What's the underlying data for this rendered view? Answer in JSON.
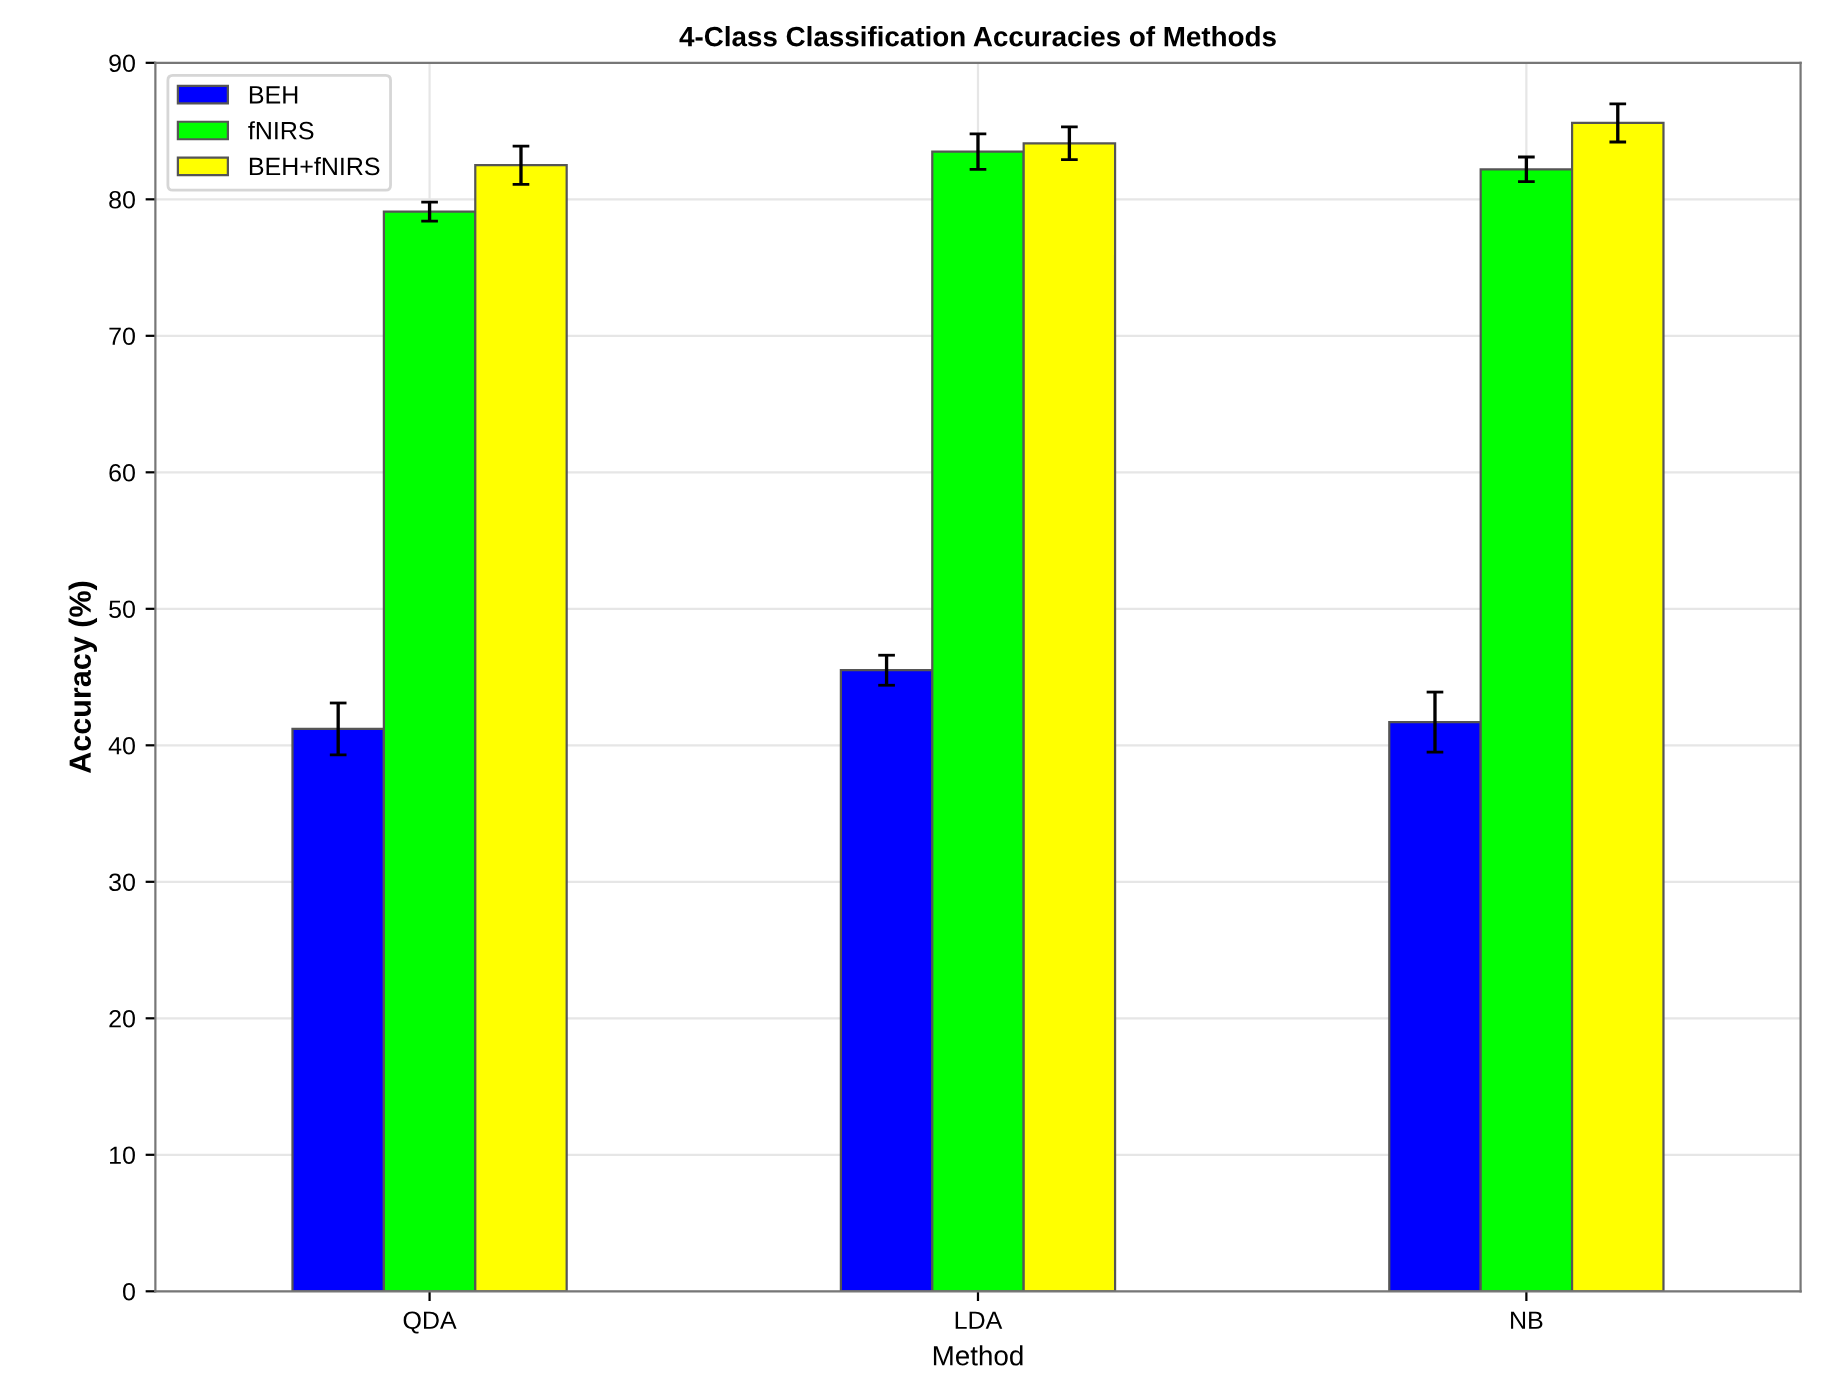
{
  "chart_data": {
    "type": "bar",
    "title": "4-Class Classification Accuracies of Methods",
    "xlabel": "Method",
    "ylabel": "Accuracy (%)",
    "categories": [
      "QDA",
      "LDA",
      "NB"
    ],
    "series": [
      {
        "name": "BEH",
        "color": "#0000ff",
        "values": [
          41.2,
          45.5,
          41.7
        ],
        "errors": [
          1.9,
          1.1,
          2.2
        ]
      },
      {
        "name": "fNIRS",
        "color": "#00ff00",
        "values": [
          79.1,
          83.5,
          82.2
        ],
        "errors": [
          0.7,
          1.3,
          0.9
        ]
      },
      {
        "name": "BEH+fNIRS",
        "color": "#ffff00",
        "values": [
          82.5,
          84.1,
          85.6
        ],
        "errors": [
          1.4,
          1.2,
          1.4
        ]
      }
    ],
    "ylim": [
      0,
      90
    ],
    "yticks": [
      0,
      10,
      20,
      30,
      40,
      50,
      60,
      70,
      80,
      90
    ],
    "grid": true,
    "legend": "top left"
  }
}
